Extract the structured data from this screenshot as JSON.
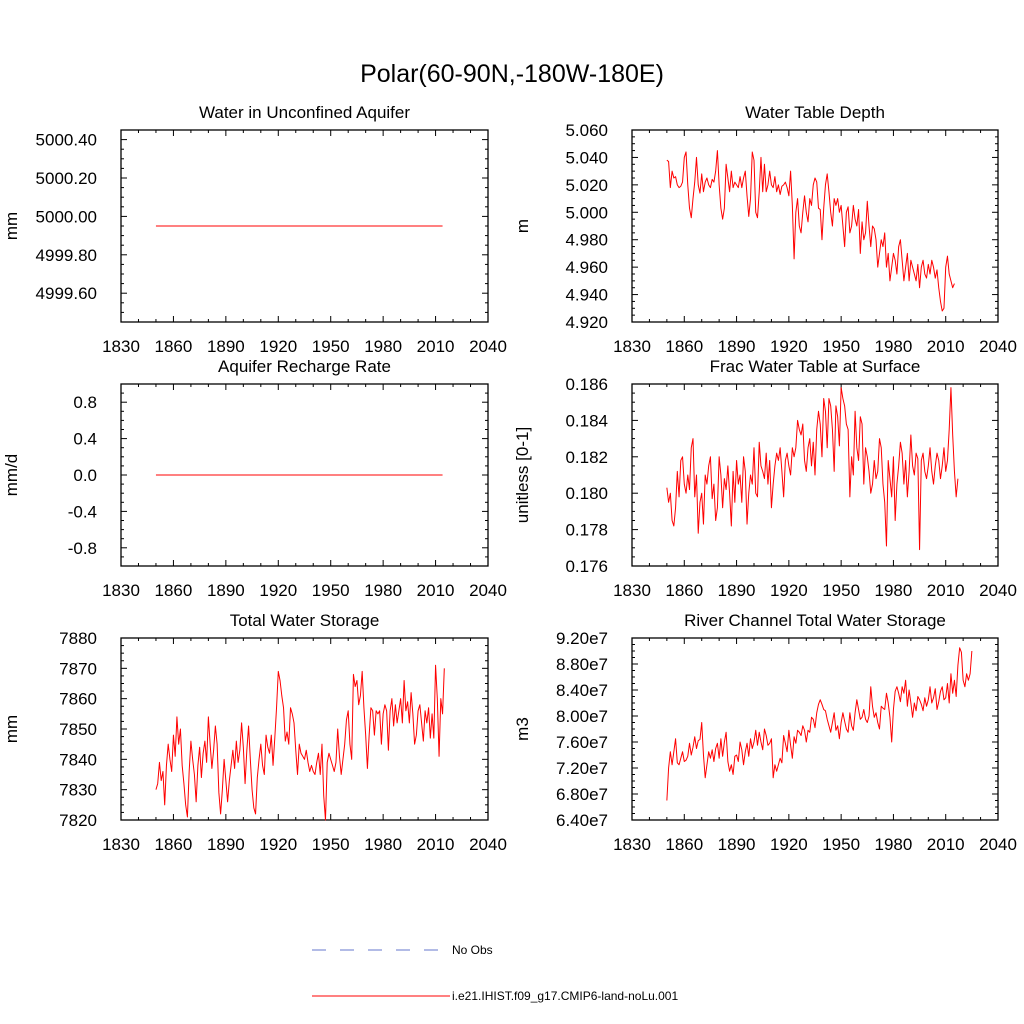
{
  "figure": {
    "title": "Polar(60-90N,-180W-180E)"
  },
  "legend": {
    "items": [
      {
        "label": "No Obs",
        "color": "#6677cc",
        "dash": true
      },
      {
        "label": "i.e21.IHIST.f09_g17.CMIP6-land-noLu.001",
        "color": "#ff0000",
        "dash": false
      }
    ]
  },
  "colors": {
    "series": "#ff0000",
    "axis": "#000000"
  },
  "chart_data": [
    {
      "type": "line",
      "title": "Water in Unconfined Aquifer",
      "ylabel": "mm",
      "xlim": [
        1830,
        2040
      ],
      "xticks": [
        1830,
        1860,
        1890,
        1920,
        1950,
        1980,
        2010,
        2040
      ],
      "ylim": [
        4999.45,
        5000.45
      ],
      "yticks": [
        4999.6,
        4999.8,
        5000.0,
        5000.2,
        5000.4
      ],
      "ytick_labels": [
        "4999.60",
        "4999.80",
        "5000.00",
        "5000.20",
        "5000.40"
      ],
      "x": [
        1850,
        2014
      ],
      "y": [
        4999.95,
        4999.95
      ]
    },
    {
      "type": "line",
      "title": "Water Table Depth",
      "ylabel": "m",
      "xlim": [
        1830,
        2040
      ],
      "xticks": [
        1830,
        1860,
        1890,
        1920,
        1950,
        1980,
        2010,
        2040
      ],
      "ylim": [
        4.92,
        5.06
      ],
      "yticks": [
        4.92,
        4.94,
        4.96,
        4.98,
        5.0,
        5.02,
        5.04,
        5.06
      ],
      "ytick_labels": [
        "4.920",
        "4.940",
        "4.960",
        "4.980",
        "5.000",
        "5.020",
        "5.040",
        "5.060"
      ],
      "x_start": 1850,
      "y": [
        5.038,
        5.037,
        5.018,
        5.03,
        5.025,
        5.026,
        5.02,
        5.018,
        5.019,
        5.022,
        5.04,
        5.044,
        5.02,
        5.003,
        4.996,
        5.01,
        5.022,
        5.04,
        5.02,
        5.014,
        5.028,
        5.015,
        5.022,
        5.025,
        5.02,
        5.018,
        5.024,
        5.022,
        5.03,
        5.045,
        5.02,
        5.003,
        4.995,
        5.003,
        5.035,
        5.025,
        5.015,
        5.03,
        5.018,
        5.022,
        5.02,
        5.018,
        5.026,
        5.018,
        5.025,
        5.03,
        5.012,
        4.997,
        5.01,
        5.044,
        5.038,
        5.0,
        4.996,
        5.015,
        5.04,
        5.015,
        5.035,
        5.015,
        5.02,
        5.03,
        5.02,
        5.018,
        5.026,
        5.015,
        5.02,
        5.013,
        5.019,
        5.02,
        5.022,
        5.018,
        5.012,
        5.03,
        5.005,
        4.966,
        5.0,
        5.01,
        4.99,
        4.985,
        5.0,
        5.012,
        5.0,
        4.993,
        5.01,
        5.005,
        5.02,
        5.025,
        5.022,
        5.003,
        5.002,
        4.98,
        5.003,
        5.02,
        5.028,
        5.015,
        5.0,
        4.99,
        5.01,
        5.005,
        5.01,
        5.0,
        5.005,
        4.99,
        4.975,
        5.0,
        5.004,
        4.985,
        4.99,
        5.005,
        4.995,
        4.99,
        5.002,
        4.97,
        4.993,
        4.98,
        4.985,
        5.008,
        4.99,
        4.975,
        4.99,
        4.988,
        4.98,
        4.96,
        4.97,
        4.98,
        4.975,
        4.985,
        4.96,
        4.97,
        4.95,
        4.96,
        4.97,
        4.965,
        4.955,
        4.975,
        4.98,
        4.965,
        4.95,
        4.96,
        4.97,
        4.95,
        4.965,
        4.96,
        4.955,
        4.95,
        4.962,
        4.945,
        4.96,
        4.965,
        4.955,
        4.952,
        4.962,
        4.955,
        4.965,
        4.96,
        4.952,
        4.958,
        4.945,
        4.935,
        4.928,
        4.93,
        4.96,
        4.968,
        4.955,
        4.95,
        4.945,
        4.948
      ]
    },
    {
      "type": "line",
      "title": "Aquifer Recharge Rate",
      "ylabel": "mm/d",
      "xlim": [
        1830,
        2040
      ],
      "xticks": [
        1830,
        1860,
        1890,
        1920,
        1950,
        1980,
        2010,
        2040
      ],
      "ylim": [
        -1.0,
        1.0
      ],
      "yticks": [
        -0.8,
        -0.4,
        0.0,
        0.4,
        0.8
      ],
      "ytick_labels": [
        "-0.8",
        "-0.4",
        "0.0",
        "0.4",
        "0.8"
      ],
      "x": [
        1850,
        2014
      ],
      "y": [
        0.0,
        0.0
      ]
    },
    {
      "type": "line",
      "title": "Frac Water Table at Surface",
      "ylabel": "unitless [0-1]",
      "xlim": [
        1830,
        2040
      ],
      "xticks": [
        1830,
        1860,
        1890,
        1920,
        1950,
        1980,
        2010,
        2040
      ],
      "ylim": [
        0.176,
        0.186
      ],
      "yticks": [
        0.176,
        0.178,
        0.18,
        0.182,
        0.184,
        0.186
      ],
      "ytick_labels": [
        "0.176",
        "0.178",
        "0.180",
        "0.182",
        "0.184",
        "0.186"
      ],
      "x_start": 1850,
      "y": [
        0.1803,
        0.1795,
        0.18,
        0.1785,
        0.1782,
        0.1792,
        0.1812,
        0.1798,
        0.1818,
        0.182,
        0.1805,
        0.18,
        0.181,
        0.1802,
        0.1825,
        0.183,
        0.1798,
        0.181,
        0.1778,
        0.1795,
        0.18,
        0.1783,
        0.181,
        0.1805,
        0.1815,
        0.182,
        0.1797,
        0.1805,
        0.1785,
        0.1792,
        0.182,
        0.181,
        0.1792,
        0.1808,
        0.1802,
        0.1815,
        0.18,
        0.1782,
        0.1812,
        0.1795,
        0.1818,
        0.1805,
        0.181,
        0.1795,
        0.182,
        0.1812,
        0.1783,
        0.18,
        0.181,
        0.1805,
        0.1825,
        0.18,
        0.1798,
        0.1828,
        0.1815,
        0.1812,
        0.1808,
        0.1822,
        0.1805,
        0.1818,
        0.1792,
        0.1805,
        0.1815,
        0.1822,
        0.1818,
        0.1825,
        0.1812,
        0.1798,
        0.1818,
        0.1822,
        0.1815,
        0.181,
        0.1825,
        0.182,
        0.1825,
        0.184,
        0.1835,
        0.1832,
        0.1838,
        0.1818,
        0.1812,
        0.1825,
        0.183,
        0.1815,
        0.1828,
        0.181,
        0.1835,
        0.1845,
        0.1838,
        0.182,
        0.1852,
        0.1845,
        0.1825,
        0.1852,
        0.1848,
        0.1835,
        0.1812,
        0.1848,
        0.1842,
        0.1826,
        0.1858,
        0.1852,
        0.1848,
        0.1838,
        0.1835,
        0.1798,
        0.182,
        0.181,
        0.1845,
        0.1825,
        0.1818,
        0.1842,
        0.1838,
        0.1805,
        0.1825,
        0.182,
        0.1812,
        0.18,
        0.1805,
        0.1818,
        0.1808,
        0.1812,
        0.183,
        0.1825,
        0.1805,
        0.1795,
        0.1771,
        0.1818,
        0.1808,
        0.1798,
        0.182,
        0.1785,
        0.1805,
        0.1815,
        0.1828,
        0.1822,
        0.1805,
        0.1818,
        0.1798,
        0.1812,
        0.1832,
        0.1815,
        0.181,
        0.1822,
        0.1819,
        0.1769,
        0.1818,
        0.1822,
        0.1812,
        0.1808,
        0.1815,
        0.1825,
        0.1812,
        0.1805,
        0.1815,
        0.1822,
        0.1818,
        0.1808,
        0.1815,
        0.1825,
        0.1812,
        0.1818,
        0.1835,
        0.1858,
        0.1832,
        0.1812,
        0.1798,
        0.1808
      ]
    },
    {
      "type": "line",
      "title": "Total Water Storage",
      "ylabel": "mm",
      "xlim": [
        1830,
        2040
      ],
      "xticks": [
        1830,
        1860,
        1890,
        1920,
        1950,
        1980,
        2010,
        2040
      ],
      "ylim": [
        7820,
        7880
      ],
      "yticks": [
        7820,
        7830,
        7840,
        7850,
        7860,
        7870,
        7880
      ],
      "ytick_labels": [
        "7820",
        "7830",
        "7840",
        "7850",
        "7860",
        "7870",
        "7880"
      ],
      "x_start": 1850,
      "y": [
        7830,
        7832,
        7839,
        7833,
        7836,
        7825,
        7838,
        7845,
        7840,
        7836,
        7848,
        7841,
        7854,
        7845,
        7850,
        7838,
        7832,
        7825,
        7821,
        7836,
        7846,
        7840,
        7835,
        7826,
        7838,
        7844,
        7834,
        7842,
        7846,
        7839,
        7854,
        7845,
        7837,
        7843,
        7851,
        7845,
        7829,
        7822,
        7830,
        7840,
        7833,
        7826,
        7833,
        7838,
        7843,
        7837,
        7846,
        7839,
        7843,
        7852,
        7844,
        7832,
        7843,
        7851,
        7840,
        7830,
        7824,
        7822,
        7834,
        7840,
        7845,
        7838,
        7835,
        7848,
        7844,
        7842,
        7848,
        7838,
        7847,
        7857,
        7869,
        7866,
        7861,
        7857,
        7846,
        7849,
        7845,
        7857,
        7855,
        7852,
        7843,
        7835,
        7845,
        7842,
        7841,
        7840,
        7843,
        7839,
        7836,
        7838,
        7836,
        7835,
        7839,
        7842,
        7835,
        7845,
        7828,
        7820,
        7839,
        7842,
        7840,
        7838,
        7836,
        7839,
        7850,
        7841,
        7835,
        7840,
        7845,
        7853,
        7856,
        7845,
        7840,
        7868,
        7864,
        7866,
        7858,
        7861,
        7869,
        7857,
        7848,
        7837,
        7848,
        7857,
        7856,
        7848,
        7856,
        7855,
        7856,
        7845,
        7855,
        7858,
        7856,
        7843,
        7856,
        7860,
        7851,
        7858,
        7852,
        7856,
        7860,
        7852,
        7866,
        7856,
        7859,
        7852,
        7862,
        7855,
        7845,
        7848,
        7856,
        7858,
        7852,
        7846,
        7856,
        7852,
        7857,
        7847,
        7855,
        7847,
        7871,
        7860,
        7841,
        7860,
        7855,
        7870
      ]
    },
    {
      "type": "line",
      "title": "River Channel Total Water Storage",
      "ylabel": "m3",
      "xlim": [
        1830,
        2040
      ],
      "xticks": [
        1830,
        1860,
        1890,
        1920,
        1950,
        1980,
        2010,
        2040
      ],
      "ylim": [
        64000000,
        92000000
      ],
      "yticks": [
        64000000,
        68000000,
        72000000,
        76000000,
        80000000,
        84000000,
        88000000,
        92000000
      ],
      "ytick_labels": [
        "6.40e7",
        "6.80e7",
        "7.20e7",
        "7.60e7",
        "8.00e7",
        "8.40e7",
        "8.80e7",
        "9.20e7"
      ],
      "x_start": 1850,
      "y": [
        67000000,
        72000000,
        74500000,
        72500000,
        74500000,
        76500000,
        72800000,
        72500000,
        73500000,
        74500000,
        73000000,
        73200000,
        73800000,
        75800000,
        74000000,
        75200000,
        76800000,
        75000000,
        76200000,
        76400000,
        79000000,
        74000000,
        70500000,
        72500000,
        74500000,
        73500000,
        74800000,
        73000000,
        75000000,
        75800000,
        73500000,
        76500000,
        73800000,
        76000000,
        77500000,
        73000000,
        71500000,
        72500000,
        71000000,
        73800000,
        74000000,
        73000000,
        76000000,
        74800000,
        72500000,
        74500000,
        75800000,
        73800000,
        76500000,
        75000000,
        76000000,
        77800000,
        75500000,
        77500000,
        76000000,
        74800000,
        78000000,
        77000000,
        75500000,
        75800000,
        76500000,
        70500000,
        72500000,
        71500000,
        72500000,
        73500000,
        72800000,
        77000000,
        75800000,
        74500000,
        77800000,
        75500000,
        73500000,
        76800000,
        75800000,
        77800000,
        77500000,
        77000000,
        78500000,
        77800000,
        76000000,
        77800000,
        77500000,
        79800000,
        79500000,
        78200000,
        80500000,
        81800000,
        82500000,
        81800000,
        81000000,
        80800000,
        79500000,
        78500000,
        77500000,
        79000000,
        80500000,
        77800000,
        78500000,
        76500000,
        79000000,
        80500000,
        79200000,
        78000000,
        77500000,
        80500000,
        78500000,
        77800000,
        80500000,
        82500000,
        81000000,
        79500000,
        79800000,
        81000000,
        79500000,
        79000000,
        80000000,
        84500000,
        81500000,
        79800000,
        80500000,
        79000000,
        78000000,
        81500000,
        81200000,
        81000000,
        83500000,
        82000000,
        79800000,
        76000000,
        81000000,
        83800000,
        84500000,
        83500000,
        82200000,
        84500000,
        83500000,
        85500000,
        81500000,
        84000000,
        82000000,
        79800000,
        82000000,
        80800000,
        83000000,
        82500000,
        81800000,
        80800000,
        82800000,
        81500000,
        82500000,
        84500000,
        82000000,
        82800000,
        84200000,
        81000000,
        82200000,
        83800000,
        84500000,
        82500000,
        82800000,
        85000000,
        82000000,
        86500000,
        83500000,
        85500000,
        83000000,
        87800000,
        90500000,
        89800000,
        85500000,
        84500000,
        86500000,
        85500000,
        86500000,
        90000000
      ]
    }
  ]
}
